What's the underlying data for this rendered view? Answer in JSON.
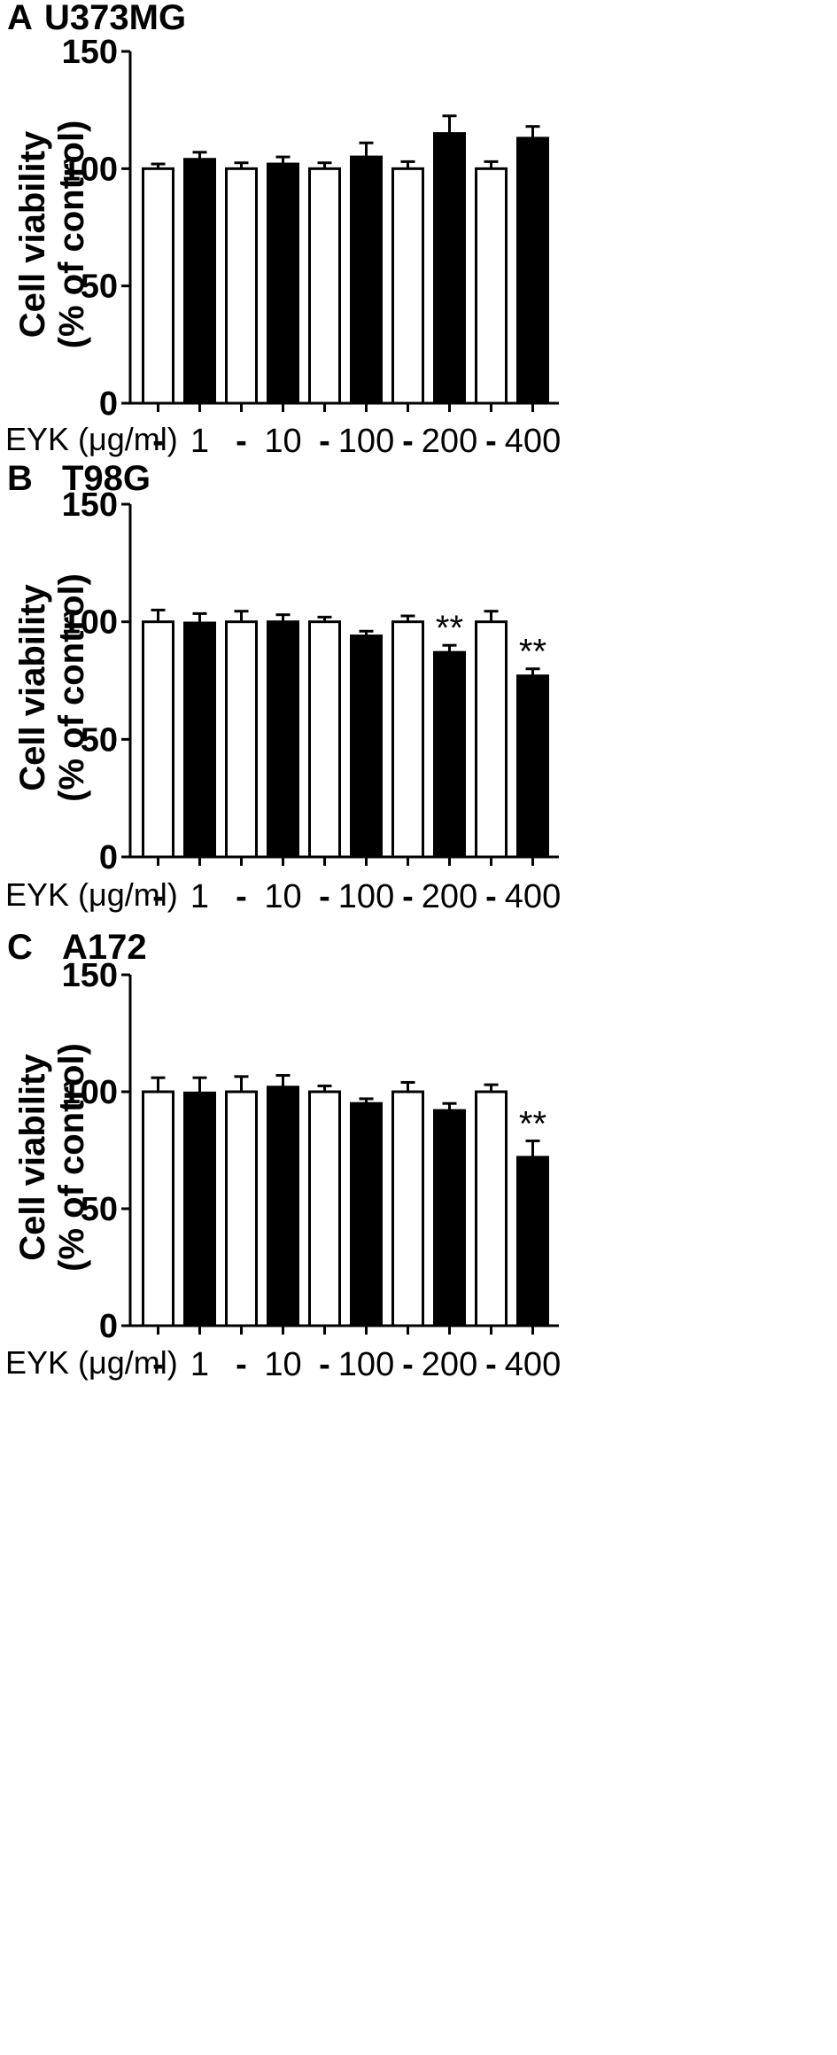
{
  "chart_data": [
    {
      "type": "bar",
      "panel": "A",
      "title": "U373MG",
      "ylabel_line1": "Cell viability",
      "ylabel_line2": "(% of control)",
      "xlabel": "EYK (μg/ml)",
      "ylim": [
        0,
        150
      ],
      "yticks": [
        "0",
        "50",
        "100",
        "150"
      ],
      "categories": [
        "-",
        "1",
        "-",
        "10",
        "-",
        "100",
        "-",
        "200",
        "-",
        "400"
      ],
      "fills": [
        "white",
        "black",
        "white",
        "black",
        "white",
        "black",
        "white",
        "black",
        "white",
        "black"
      ],
      "values": [
        100,
        104,
        100,
        102,
        100,
        105,
        100,
        115,
        100,
        113
      ],
      "errors": [
        2,
        3,
        2.5,
        3,
        2.5,
        6,
        3,
        7.5,
        3,
        5
      ],
      "annotations": [
        "",
        "",
        "",
        "",
        "",
        "",
        "",
        "",
        "",
        ""
      ]
    },
    {
      "type": "bar",
      "panel": "B",
      "title": "T98G",
      "ylabel_line1": "Cell viability",
      "ylabel_line2": "(% of control)",
      "xlabel": "EYK (μg/ml)",
      "ylim": [
        0,
        150
      ],
      "yticks": [
        "0",
        "50",
        "100",
        "150"
      ],
      "categories": [
        "-",
        "1",
        "-",
        "10",
        "-",
        "100",
        "-",
        "200",
        "-",
        "400"
      ],
      "fills": [
        "white",
        "black",
        "white",
        "black",
        "white",
        "black",
        "white",
        "black",
        "white",
        "black"
      ],
      "values": [
        100,
        99.5,
        100,
        100,
        100,
        94,
        100,
        87,
        100,
        77
      ],
      "errors": [
        5,
        4,
        4.5,
        3,
        2,
        2,
        2.5,
        3,
        4.5,
        3
      ],
      "annotations": [
        "",
        "",
        "",
        "",
        "",
        "",
        "",
        "**",
        "",
        "**"
      ]
    },
    {
      "type": "bar",
      "panel": "C",
      "title": "A172",
      "ylabel_line1": "Cell viability",
      "ylabel_line2": "(% of control)",
      "xlabel": "EYK (μg/ml)",
      "ylim": [
        0,
        150
      ],
      "yticks": [
        "0",
        "50",
        "100",
        "150"
      ],
      "categories": [
        "-",
        "1",
        "-",
        "10",
        "-",
        "100",
        "-",
        "200",
        "-",
        "400"
      ],
      "fills": [
        "white",
        "black",
        "white",
        "black",
        "white",
        "black",
        "white",
        "black",
        "white",
        "black"
      ],
      "values": [
        100,
        99.5,
        100,
        102,
        100,
        95,
        100,
        92,
        100,
        72
      ],
      "errors": [
        6,
        6.5,
        6.5,
        5,
        2.5,
        2,
        4,
        3,
        3,
        7
      ],
      "annotations": [
        "",
        "",
        "",
        "",
        "",
        "",
        "",
        "",
        "",
        "**"
      ]
    }
  ]
}
